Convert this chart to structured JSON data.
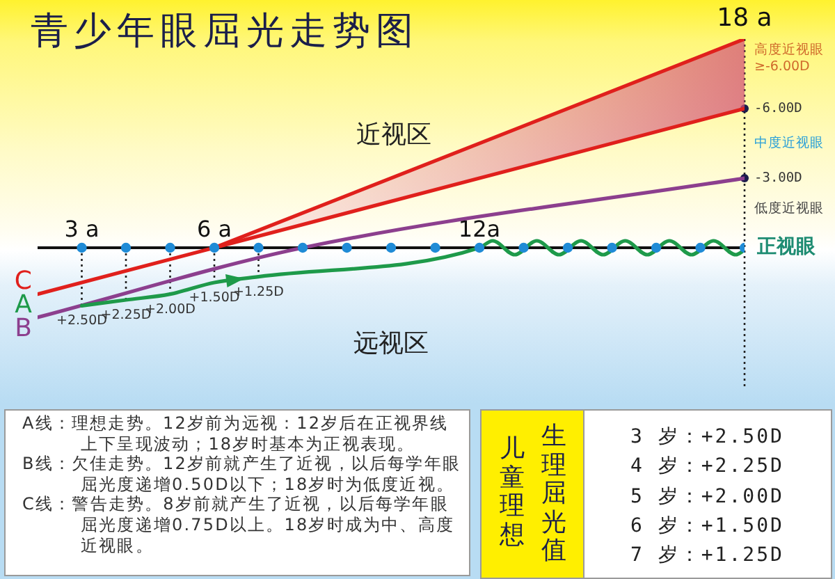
{
  "chart_data": [
    {
      "type": "line",
      "title": "青少年眼屈光走势图",
      "series": [
        {
          "name": "A",
          "color": "#1e9a4a",
          "x": [
            3,
            4,
            5,
            6,
            7,
            12,
            12.3,
            12.8,
            13.3,
            13.8,
            14.3,
            14.8,
            15.3,
            15.8,
            16.3,
            16.8,
            17.3,
            17.8,
            18
          ],
          "values": [
            2.5,
            2.25,
            2.0,
            1.5,
            1.25,
            0,
            -0.3,
            0.3,
            -0.3,
            0.3,
            -0.3,
            0.3,
            -0.3,
            0.3,
            -0.3,
            0.3,
            -0.3,
            0.3,
            0.1
          ],
          "value_labels": [
            "+2.50D",
            "+2.25D",
            "+2.00D",
            "+1.50D",
            "+1.25D",
            null,
            null,
            null,
            null,
            null,
            null,
            null,
            null,
            null,
            null,
            null,
            null,
            null,
            null
          ]
        },
        {
          "name": "B",
          "color": "#8c3f8e",
          "x": [
            2,
            8,
            18
          ],
          "values": [
            3.0,
            0,
            -3.0
          ]
        },
        {
          "name": "C",
          "color": "#e0201c",
          "x": [
            2,
            6,
            18
          ],
          "values": [
            2.0,
            0,
            -6.0
          ],
          "lower": [
            null,
            0,
            -6.0
          ],
          "upper": [
            null,
            0,
            -9.0
          ]
        },
        {
          "type": "scatter",
          "color": "#1f8bd6",
          "x": [
            3,
            4,
            5,
            6,
            7,
            8,
            9,
            10,
            11,
            12,
            13,
            14,
            15,
            16,
            17,
            18
          ],
          "values": [
            0,
            0,
            0,
            0,
            0,
            0,
            0,
            0,
            0,
            0,
            0,
            0,
            0,
            0,
            0,
            0
          ]
        }
      ],
      "xlim": [
        2,
        18
      ],
      "xticks": [
        {
          "value": 3,
          "label": "3 a"
        },
        {
          "value": 6,
          "label": "6 a"
        },
        {
          "value": 12,
          "label": "12a"
        }
      ],
      "ylim": [
        6,
        -9
      ],
      "yticks": [
        {
          "value": -3,
          "label": "-3.00D"
        },
        {
          "value": -6,
          "label": "-6.00D"
        }
      ],
      "annotations": [
        "18 a",
        "近视区",
        "远视区",
        "高度近视眼",
        "≥-6.00D",
        "中度近视眼",
        "低度近视眼",
        "正视眼"
      ]
    },
    {
      "type": "other",
      "annotations": [
        "A线：理想走势。12岁前为远视：12岁后在正视界线上下呈现波动；18岁时基本为正视表现。",
        "B线：欠佳走势。12岁前就产生了近视，以后每学年眼屈光度递增0.50D以下；18岁时为低度近视。",
        "C线：警告走势。8岁前就产生了近视，以后每学年眼屈光度递增0.75D以上。18岁时成为中、高度近视眼。"
      ]
    },
    {
      "type": "other",
      "title": "儿童理想",
      "subtitle": "生理屈光值",
      "annotations": [
        "3 岁：+2.50D",
        "4 岁：+2.25D",
        "5 岁：+2.00D",
        "6 岁：+1.50D",
        "7 岁：+1.25D"
      ]
    }
  ]
}
